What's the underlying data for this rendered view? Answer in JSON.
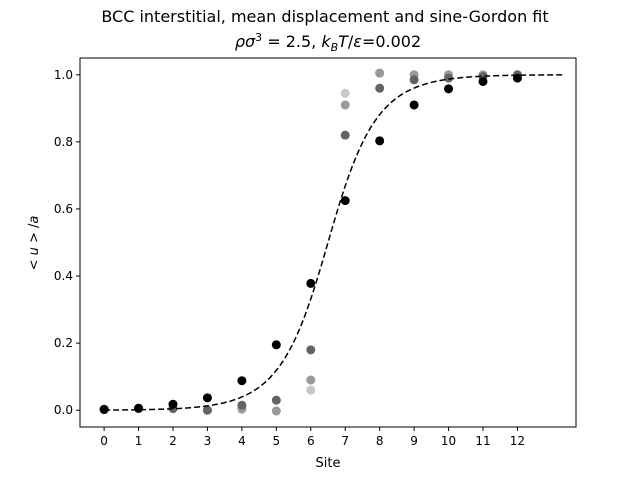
{
  "chart_data": {
    "type": "scatter",
    "title": "BCC interstitial, mean displacement and sine-Gordon fit",
    "subtitle": "ρσ³ = 2.5, k_BT/ε=0.002",
    "xlabel": "Site",
    "ylabel": "< u > /a",
    "xlim": [
      -0.7,
      13.7
    ],
    "ylim": [
      -0.05,
      1.05
    ],
    "xticks": [
      0,
      1,
      2,
      3,
      4,
      5,
      6,
      7,
      8,
      9,
      10,
      11,
      12
    ],
    "yticks": [
      0.0,
      0.2,
      0.4,
      0.6,
      0.8,
      1.0
    ],
    "grid": false,
    "legend": "none",
    "series": [
      {
        "role": "sample-light",
        "color": "#c8c8c8",
        "x": [
          0,
          1,
          2,
          3,
          4,
          5,
          6,
          7,
          8,
          9,
          10,
          11,
          12
        ],
        "y": [
          0.003,
          0.005,
          0.005,
          0.0,
          0.002,
          -0.002,
          0.06,
          0.945,
          1.005,
          1.0,
          1.0,
          1.0,
          1.0
        ]
      },
      {
        "role": "sample-medium",
        "color": "#9a9a9a",
        "x": [
          0,
          1,
          2,
          3,
          4,
          5,
          6,
          7,
          8,
          9,
          10,
          11,
          12
        ],
        "y": [
          0.003,
          0.005,
          0.005,
          0.0,
          0.005,
          -0.002,
          0.09,
          0.91,
          1.005,
          1.0,
          1.0,
          1.0,
          1.0
        ]
      },
      {
        "role": "sample-dark",
        "color": "#646464",
        "x": [
          0,
          1,
          2,
          3,
          4,
          5,
          6,
          7,
          8,
          9,
          10,
          11,
          12
        ],
        "y": [
          0.003,
          0.005,
          0.005,
          0.0,
          0.015,
          0.03,
          0.18,
          0.82,
          0.96,
          0.985,
          0.99,
          0.995,
          1.0
        ]
      },
      {
        "role": "mean",
        "color": "#000000",
        "x": [
          0,
          1,
          2,
          3,
          4,
          5,
          6,
          7,
          8,
          9,
          10,
          11,
          12
        ],
        "y": [
          0.002,
          0.006,
          0.018,
          0.037,
          0.088,
          0.195,
          0.378,
          0.625,
          0.803,
          0.91,
          0.958,
          0.98,
          0.99
        ]
      }
    ],
    "fit": {
      "color": "#000000",
      "style": "dashed",
      "x_range": [
        0,
        13.3
      ],
      "center": 6.5,
      "width": 0.9
    }
  }
}
